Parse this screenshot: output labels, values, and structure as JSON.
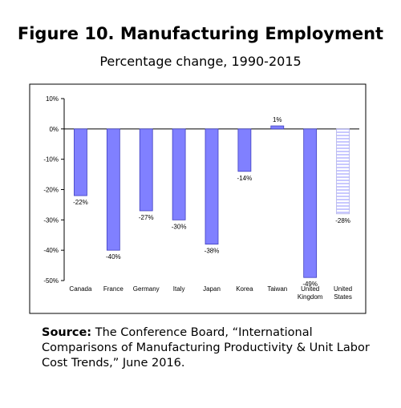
{
  "header": {
    "title": "Figure 10. Manufacturing Employment",
    "subtitle": "Percentage change, 1990-2015"
  },
  "source": {
    "label": "Source:",
    "text": "The Conference Board, “International Comparisons of Manufacturing Productivity & Unit Labor Cost Trends,” June 2016."
  },
  "chart_data": {
    "type": "bar",
    "categories": [
      "Canada",
      "France",
      "Germany",
      "Italy",
      "Japan",
      "Korea",
      "Taiwan",
      "United Kingdom",
      "United States"
    ],
    "values": [
      -22,
      -40,
      -27,
      -30,
      -38,
      -14,
      1,
      -49,
      -28
    ],
    "data_labels": [
      "-22%",
      "-40%",
      "-27%",
      "-30%",
      "-38%",
      "-14%",
      "1%",
      "-49%",
      "-28%"
    ],
    "ylim": [
      -50,
      10
    ],
    "yticks": [
      10,
      0,
      -10,
      -20,
      -30,
      -40,
      -50
    ],
    "ytick_labels": [
      "10%",
      "0%",
      "-10%",
      "-20%",
      "-30%",
      "-40%",
      "-50%"
    ],
    "title": "",
    "xlabel": "",
    "ylabel": "",
    "grid": false,
    "legend": "none",
    "colors": {
      "bar_fill": "#8080ff",
      "bar_stroke": "#4040c0",
      "highlight_fill": "#ccccff",
      "highlight_stripe": "#ffffff"
    },
    "highlight_category": "United States"
  }
}
